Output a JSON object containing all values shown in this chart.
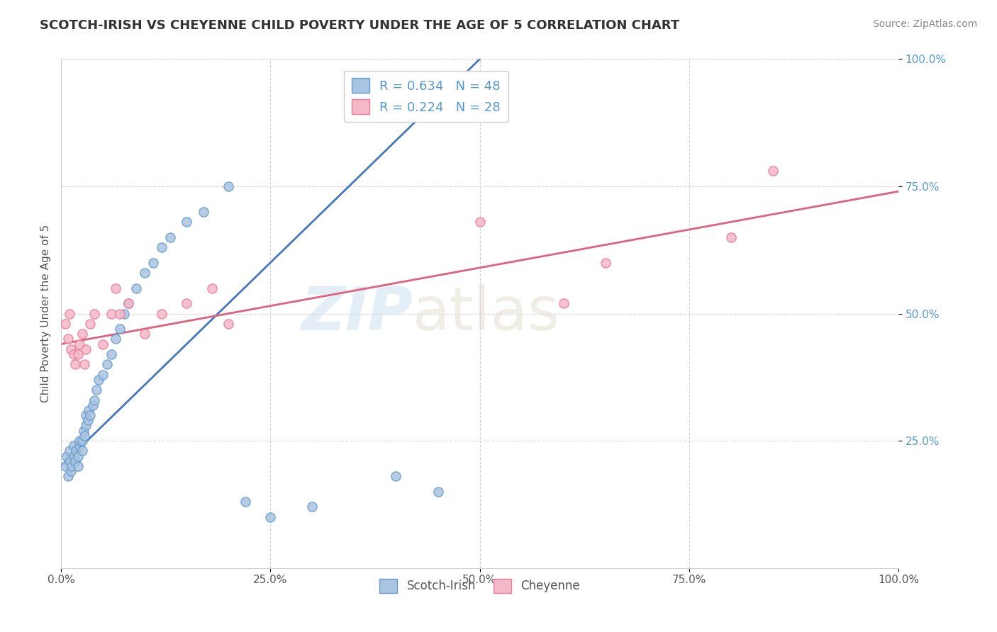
{
  "title": "SCOTCH-IRISH VS CHEYENNE CHILD POVERTY UNDER THE AGE OF 5 CORRELATION CHART",
  "source": "Source: ZipAtlas.com",
  "ylabel": "Child Poverty Under the Age of 5",
  "xmin": 0.0,
  "xmax": 1.0,
  "ymin": 0.0,
  "ymax": 1.0,
  "xtick_labels": [
    "0.0%",
    "25.0%",
    "50.0%",
    "75.0%",
    "100.0%"
  ],
  "xtick_vals": [
    0.0,
    0.25,
    0.5,
    0.75,
    1.0
  ],
  "ytick_labels": [
    "25.0%",
    "50.0%",
    "75.0%",
    "100.0%"
  ],
  "ytick_vals": [
    0.25,
    0.5,
    0.75,
    1.0
  ],
  "legend_label1": "Scotch-Irish",
  "legend_label2": "Cheyenne",
  "R1": 0.634,
  "N1": 48,
  "R2": 0.224,
  "N2": 28,
  "blue_color": "#a8c4e0",
  "blue_edge_color": "#6699cc",
  "pink_color": "#f5b8c8",
  "pink_edge_color": "#e87a9a",
  "blue_line_color": "#4477bb",
  "pink_line_color": "#e06080",
  "blue_tick_color": "#5599cc",
  "scotch_irish_x": [
    0.005,
    0.007,
    0.008,
    0.01,
    0.01,
    0.012,
    0.013,
    0.015,
    0.015,
    0.017,
    0.018,
    0.02,
    0.02,
    0.022,
    0.022,
    0.025,
    0.025,
    0.027,
    0.028,
    0.03,
    0.03,
    0.032,
    0.033,
    0.035,
    0.038,
    0.04,
    0.042,
    0.045,
    0.05,
    0.055,
    0.06,
    0.065,
    0.07,
    0.075,
    0.08,
    0.09,
    0.1,
    0.11,
    0.12,
    0.13,
    0.15,
    0.17,
    0.2,
    0.22,
    0.25,
    0.3,
    0.4,
    0.45
  ],
  "scotch_irish_y": [
    0.2,
    0.22,
    0.18,
    0.21,
    0.23,
    0.19,
    0.2,
    0.22,
    0.24,
    0.21,
    0.23,
    0.2,
    0.22,
    0.24,
    0.25,
    0.23,
    0.25,
    0.27,
    0.26,
    0.28,
    0.3,
    0.29,
    0.31,
    0.3,
    0.32,
    0.33,
    0.35,
    0.37,
    0.38,
    0.4,
    0.42,
    0.45,
    0.47,
    0.5,
    0.52,
    0.55,
    0.58,
    0.6,
    0.63,
    0.65,
    0.68,
    0.7,
    0.75,
    0.13,
    0.1,
    0.12,
    0.18,
    0.15
  ],
  "cheyenne_x": [
    0.005,
    0.008,
    0.01,
    0.012,
    0.015,
    0.017,
    0.02,
    0.022,
    0.025,
    0.028,
    0.03,
    0.035,
    0.04,
    0.05,
    0.06,
    0.065,
    0.07,
    0.08,
    0.1,
    0.12,
    0.15,
    0.18,
    0.2,
    0.5,
    0.6,
    0.65,
    0.8,
    0.85
  ],
  "cheyenne_y": [
    0.48,
    0.45,
    0.5,
    0.43,
    0.42,
    0.4,
    0.42,
    0.44,
    0.46,
    0.4,
    0.43,
    0.48,
    0.5,
    0.44,
    0.5,
    0.55,
    0.5,
    0.52,
    0.46,
    0.5,
    0.52,
    0.55,
    0.48,
    0.68,
    0.52,
    0.6,
    0.65,
    0.78
  ],
  "blue_line_x0": 0.0,
  "blue_line_y0": 0.2,
  "blue_line_x1": 0.5,
  "blue_line_y1": 1.0,
  "pink_line_x0": 0.0,
  "pink_line_y0": 0.44,
  "pink_line_x1": 1.0,
  "pink_line_y1": 0.74
}
